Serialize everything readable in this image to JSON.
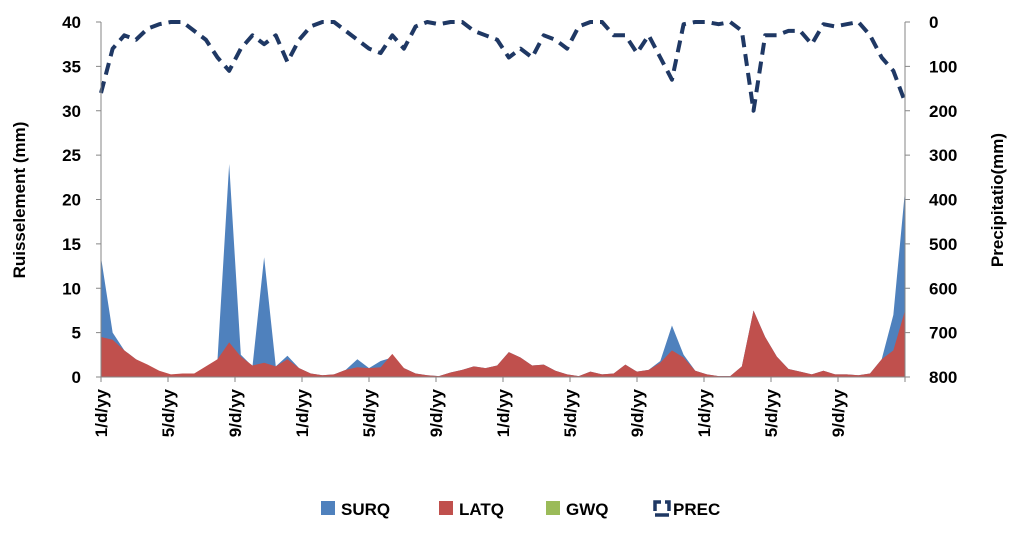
{
  "chart_data": {
    "type": "area",
    "x_tick_labels": [
      "1/d/yy",
      "5/d/yy",
      "9/d/yy",
      "1/d/yy",
      "5/d/yy",
      "9/d/yy",
      "1/d/yy",
      "5/d/yy",
      "9/d/yy",
      "1/d/yy",
      "5/d/yy",
      "9/d/yy"
    ],
    "ylabel": "Ruisselement (mm)",
    "y2label": "Precipitatio(mm)",
    "ylim": [
      0,
      40
    ],
    "y_ticks": [
      0,
      5,
      10,
      15,
      20,
      25,
      30,
      35,
      40
    ],
    "y2lim": [
      800,
      0
    ],
    "y2_ticks": [
      0,
      100,
      200,
      300,
      400,
      500,
      600,
      700,
      800
    ],
    "y2_reversed": true,
    "grid": false,
    "legend_position": "bottom",
    "series": [
      {
        "name": "SURQ",
        "type": "area",
        "axis": "left",
        "color": "#4F81BD",
        "values": [
          13.5,
          5,
          3,
          2,
          1,
          0.4,
          0.2,
          0.3,
          0.3,
          1,
          2,
          24,
          2.5,
          1.2,
          13.5,
          1.2,
          2.4,
          1,
          0.4,
          0.2,
          0.3,
          0.8,
          2,
          1,
          1.8,
          2.2,
          1,
          0.4,
          0.2,
          0.1,
          0.5,
          0.8,
          1.2,
          1,
          1.3,
          2.8,
          2.2,
          1.3,
          1.4,
          0.7,
          0.3,
          0.1,
          0.6,
          0.3,
          0.4,
          1.4,
          0.6,
          0.8,
          1.8,
          5.8,
          2.5,
          0.7,
          0.3,
          0.1,
          0.1,
          1.2,
          7.5,
          4.5,
          2.3,
          0.9,
          0.6,
          0.3,
          0.7,
          0.3,
          0.3,
          0.2,
          0.4,
          2,
          7,
          21
        ]
      },
      {
        "name": "LATQ",
        "type": "area",
        "axis": "left",
        "color": "#C0504D",
        "values": [
          4.5,
          4.2,
          3,
          2,
          1.4,
          0.7,
          0.3,
          0.4,
          0.4,
          1.2,
          2,
          3.9,
          2.3,
          1.3,
          1.6,
          1.2,
          2,
          1,
          0.4,
          0.2,
          0.3,
          0.8,
          1.1,
          1,
          1.1,
          2.6,
          1,
          0.4,
          0.2,
          0.1,
          0.5,
          0.8,
          1.2,
          1,
          1.3,
          2.8,
          2.2,
          1.3,
          1.4,
          0.7,
          0.3,
          0.1,
          0.6,
          0.3,
          0.4,
          1.4,
          0.6,
          0.8,
          1.6,
          3,
          2.2,
          0.7,
          0.3,
          0.1,
          0.1,
          1.2,
          7.5,
          4.5,
          2.3,
          0.9,
          0.6,
          0.3,
          0.7,
          0.3,
          0.3,
          0.2,
          0.4,
          2,
          3,
          7.5
        ]
      },
      {
        "name": "GWQ",
        "type": "area",
        "axis": "left",
        "color": "#9BBB59",
        "values": [
          0,
          0,
          0,
          0,
          0,
          0,
          0,
          0,
          0,
          0,
          0,
          0,
          0,
          0,
          0,
          0,
          0,
          0,
          0,
          0,
          0,
          0,
          0,
          0,
          0,
          0,
          0,
          0,
          0,
          0,
          0,
          0,
          0,
          0,
          0,
          0,
          0,
          0,
          0,
          0,
          0,
          0,
          0,
          0,
          0,
          0,
          0,
          0,
          0,
          0,
          0,
          0,
          0,
          0,
          0,
          0,
          0,
          0,
          0,
          0,
          0,
          0,
          0,
          0,
          0,
          0,
          0,
          0,
          0,
          0
        ]
      },
      {
        "name": "PREC",
        "type": "line",
        "axis": "right",
        "style": "dashed",
        "color": "#1F3864",
        "values": [
          160,
          60,
          30,
          40,
          15,
          5,
          0,
          0,
          20,
          40,
          80,
          110,
          60,
          30,
          50,
          30,
          90,
          40,
          10,
          0,
          0,
          20,
          40,
          60,
          70,
          30,
          60,
          10,
          0,
          5,
          0,
          0,
          20,
          30,
          40,
          80,
          60,
          80,
          30,
          40,
          60,
          10,
          0,
          0,
          30,
          30,
          70,
          30,
          80,
          130,
          5,
          0,
          0,
          5,
          0,
          20,
          200,
          30,
          30,
          20,
          20,
          50,
          5,
          10,
          5,
          0,
          30,
          80,
          110,
          180
        ]
      }
    ]
  },
  "legend": {
    "items": [
      {
        "label": "SURQ",
        "color": "#4F81BD",
        "marker": "square"
      },
      {
        "label": "LATQ",
        "color": "#C0504D",
        "marker": "square"
      },
      {
        "label": "GWQ",
        "color": "#9BBB59",
        "marker": "square"
      },
      {
        "label": "PREC",
        "color": "#1F3864",
        "marker": "dashed-line"
      }
    ]
  }
}
